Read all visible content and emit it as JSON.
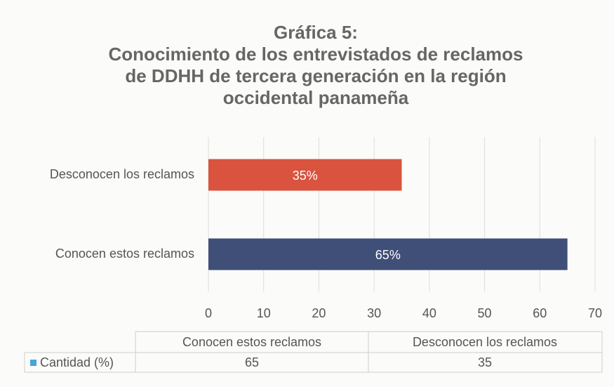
{
  "chart_data": {
    "type": "bar",
    "orientation": "horizontal",
    "title": [
      "Gráfica 5:",
      "Conocimiento de los entrevistados de reclamos",
      "de DDHH de tercera generación en la región",
      "occidental panameña"
    ],
    "categories": [
      "Desconocen los reclamos",
      "Conocen estos reclamos"
    ],
    "values": [
      35,
      65
    ],
    "value_labels": [
      "35%",
      "65%"
    ],
    "colors": [
      "#d9533f",
      "#3f4f78"
    ],
    "xlim": [
      0,
      70
    ],
    "xticks": [
      0,
      10,
      20,
      30,
      40,
      50,
      60,
      70
    ],
    "grid": true,
    "data_table": {
      "columns": [
        "Conocen estos reclamos",
        "Desconocen los reclamos"
      ],
      "row_label": "Cantidad (%)",
      "values": [
        65,
        35
      ],
      "legend_color": "#4aa3d8"
    }
  }
}
